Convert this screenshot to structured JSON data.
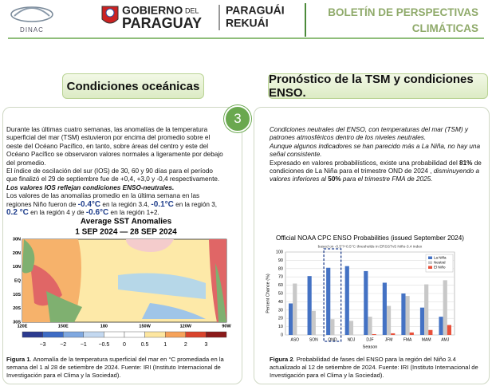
{
  "header": {
    "org": "DINAC",
    "gov_top": "GOBIERNO",
    "gov_del": "DEL",
    "gov_bottom": "PARAGUAY",
    "rekuai_top": "PARAGUÁI",
    "rekuai_bottom": "REKUÁI",
    "bulletin": "BOLETÍN DE PERSPECTIVAS CLIMÁTICAS"
  },
  "section_number": "3",
  "left": {
    "title": "Condiciones oceánicas",
    "paragraphs": [
      [
        {
          "text": "Durante las últimas cuatro semanas, las anomalías de la temperatura superficial del mar (TSM) estuvieron por encima del promedio sobre el oeste del Océano Pacífico, en tanto, sobre áreas del centro y este del Océano Pacífico se observaron valores normales a ligeramente por debajo del promedio."
        }
      ],
      [
        {
          "text": "El índice de oscilación del sur (IOS) de 30, 60 y 90 días para el período que finalizó el 29 de septiembre fue de +0,4, +3,0 y -0,4 respectivamente."
        }
      ],
      [
        {
          "text": "Los valores IOS reflejan condiciones ENSO-neutrales.",
          "style": "bold-italic"
        }
      ],
      [
        {
          "text": "Los valores de las anomalías promedio en la última semana en las regiones Niño fueron de "
        },
        {
          "text": "-0.4°C",
          "style": "highlight"
        },
        {
          "text": " en la región 3.4, "
        },
        {
          "text": "-0.1°C",
          "style": "highlight"
        },
        {
          "text": " en la región 3, "
        },
        {
          "text": "0.2 °C",
          "style": "highlight"
        },
        {
          "text": " en la región 4 y de "
        },
        {
          "text": "-0.6°C",
          "style": "highlight"
        },
        {
          "text": " en la región 1+2."
        }
      ]
    ],
    "map": {
      "title": "Average SST Anomalies",
      "period": "1 SEP 2024 — 28 SEP 2024",
      "lat_labels": [
        "30N",
        "20N",
        "10N",
        "EQ",
        "10S",
        "20S",
        "30S"
      ],
      "lon_labels": [
        "120E",
        "150E",
        "180",
        "150W",
        "120W",
        "90W"
      ],
      "colorbar_labels": [
        "−3",
        "−2",
        "−1",
        "−0.5",
        "0",
        "0.5",
        "1",
        "2",
        "3"
      ]
    },
    "caption": [
      {
        "text": "Figura 1",
        "style": "bold"
      },
      {
        "text": ". Anomalía de la temperatura superficial del mar en °C promediada en la semana del 1 al 28 de setiembre de 2024. Fuente: IRI (Instituto Internacional de Investigación para el Clima y la Sociedad)."
      }
    ]
  },
  "right": {
    "title": "Pronóstico de la TSM y condiciones ENSO.",
    "paragraphs": [
      [
        {
          "text": "Condiciones neutrales del ENSO, con temperaturas del mar (TSM) y patrones atmosféricos dentro de los niveles neutrales.",
          "style": "italic"
        }
      ],
      [
        {
          "text": "Aunque algunos indicadores se han parecido más a La Niña, no hay una señal consistente.",
          "style": "italic"
        }
      ],
      [
        {
          "text": "Expresado en valores probabilísticos, existe una probabilidad del "
        },
        {
          "text": "81%",
          "style": "bold"
        },
        {
          "text": " de condiciones de La Niña para el trimestre OND de 2024 , "
        },
        {
          "text": "disminuyendo a valores inferiores al ",
          "style": "italic"
        },
        {
          "text": "50%",
          "style": "bold"
        },
        {
          "text": " para el trimestre FMA de 2025.",
          "style": "italic"
        }
      ]
    ],
    "caption": [
      {
        "text": "Figura 2",
        "style": "bold"
      },
      {
        "text": ". Probabilidad de fases del ENSO para la región del Niño 3.4 actualizado al 12 de setiembre de 2024. Fuente: IRI (Instituto Internacional de Investigación para el Clima y la Sociedad)."
      }
    ]
  },
  "chart_data": {
    "type": "bar",
    "title": "Official NOAA CPC ENSO Probabilities (issued September 2024)",
    "subtitle": "based on -0.5°/+0.5°C thresholds in ERSSTv5 Niño-3.4 index",
    "y_label": "Percent Chance (%)",
    "x_label": "Season",
    "categories": [
      "ASO",
      "SON",
      "OND",
      "NDJ",
      "DJF",
      "JFM",
      "FMA",
      "MAM",
      "AMJ"
    ],
    "series": [
      {
        "name": "La Niña",
        "color": "#4472c4",
        "values": [
          38,
          71,
          81,
          83,
          77,
          63,
          50,
          33,
          22
        ]
      },
      {
        "name": "Neutral",
        "color": "#c8c8c8",
        "values": [
          62,
          29,
          19,
          17,
          22,
          35,
          47,
          61,
          66
        ]
      },
      {
        "name": "El Niño",
        "color": "#e8503a",
        "values": [
          0,
          0,
          0,
          0,
          1,
          2,
          3,
          6,
          12
        ]
      }
    ],
    "ylim": [
      0,
      100
    ],
    "yticks": [
      0,
      10,
      20,
      30,
      40,
      50,
      60,
      70,
      80,
      90,
      100
    ],
    "grid": true,
    "legend": "top-right"
  }
}
